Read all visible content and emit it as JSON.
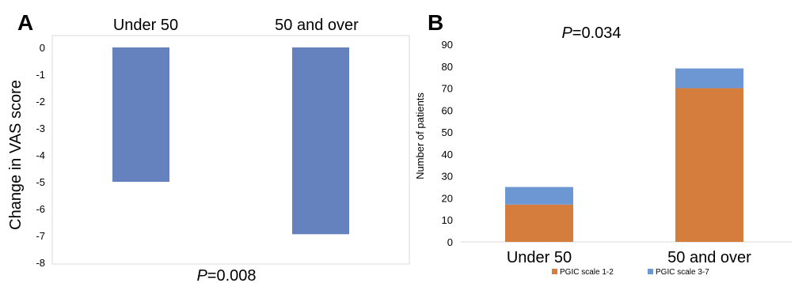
{
  "chart_data": [
    {
      "panel_label": "A",
      "type": "bar",
      "categories": [
        "Under 50",
        "50 and over"
      ],
      "values": [
        -5,
        -6.95
      ],
      "ylabel": "Change in VAS score",
      "ylim": [
        -8,
        0
      ],
      "yticks": [
        0,
        -1,
        -2,
        -3,
        -4,
        -5,
        -6,
        -7,
        -8
      ],
      "category_labels_position": "top",
      "annotation": {
        "prefix": "P",
        "value": "=0.008"
      },
      "grid": false,
      "colors": {
        "bar": "#6582bf"
      }
    },
    {
      "panel_label": "B",
      "type": "bar",
      "stacked": true,
      "categories": [
        "Under 50",
        "50 and over"
      ],
      "series": [
        {
          "name": "PGIC scale 1-2",
          "values": [
            17,
            70
          ],
          "color": "#d57d3d"
        },
        {
          "name": "PGIC scale 3-7",
          "values": [
            8,
            9
          ],
          "color": "#6d97d3"
        }
      ],
      "ylabel": "Number of patients",
      "ylim": [
        0,
        90
      ],
      "yticks": [
        0,
        10,
        20,
        30,
        40,
        50,
        60,
        70,
        80,
        90
      ],
      "annotation": {
        "prefix": "P",
        "value": "=0.034"
      },
      "legend": "bottom",
      "grid": false
    }
  ]
}
